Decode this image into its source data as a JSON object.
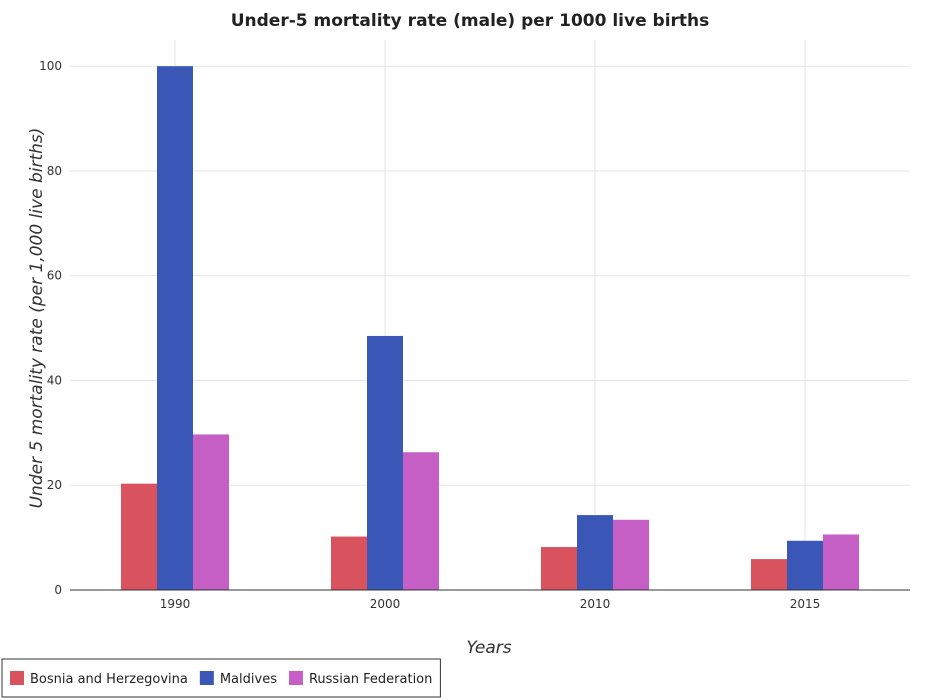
{
  "chart_data": {
    "type": "bar",
    "title": "Under-5 mortality rate (male) per 1000 live births",
    "xlabel": "Years",
    "ylabel": "Under 5 mortality rate (per 1,000 live births)",
    "categories": [
      "1990",
      "2000",
      "2010",
      "2015"
    ],
    "ylim": [
      0,
      105
    ],
    "yticks": [
      0,
      20,
      40,
      60,
      80,
      100
    ],
    "grid": true,
    "legend_position": "bottom-left",
    "series": [
      {
        "name": "Bosnia and Herzegovina",
        "color": "#d9535f",
        "values": [
          20.3,
          10.2,
          8.2,
          5.9
        ]
      },
      {
        "name": "Maldives",
        "color": "#3a57b8",
        "values": [
          100.0,
          48.5,
          14.3,
          9.4
        ]
      },
      {
        "name": "Russian Federation",
        "color": "#c65fc5",
        "values": [
          29.7,
          26.3,
          13.4,
          10.6
        ]
      }
    ]
  }
}
